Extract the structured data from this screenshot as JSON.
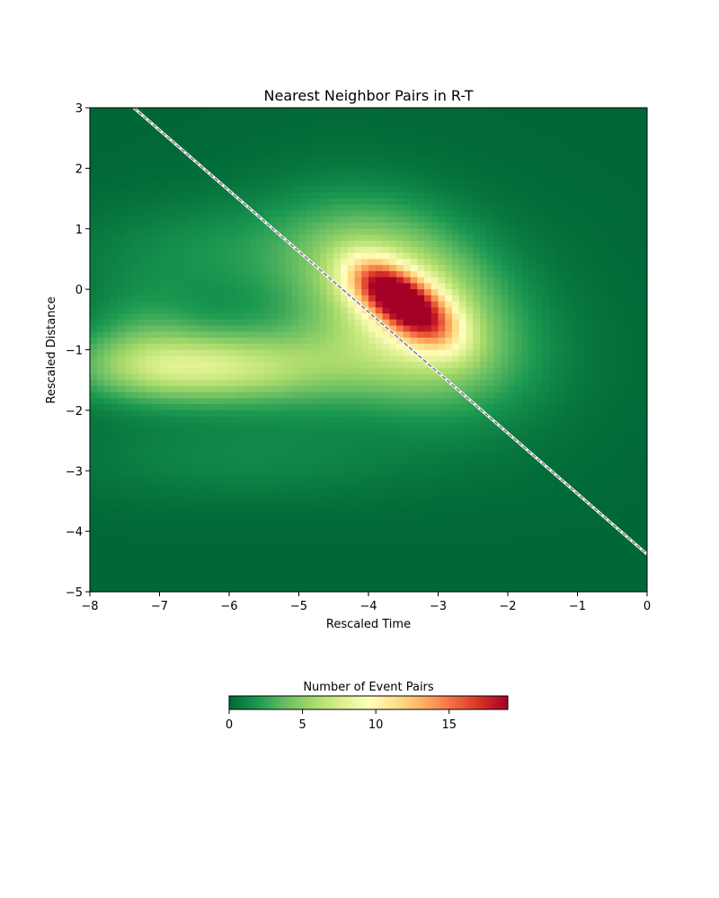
{
  "chart_data": {
    "type": "heatmap",
    "title": "Nearest Neighbor Pairs in R-T",
    "xlabel": "Rescaled Time",
    "ylabel": "Rescaled Distance",
    "xlim": [
      -8,
      0
    ],
    "ylim": [
      -5,
      3
    ],
    "xticks": [
      -8,
      -7,
      -6,
      -5,
      -4,
      -3,
      -2,
      -1,
      0
    ],
    "yticks": [
      -5,
      -4,
      -3,
      -2,
      -1,
      0,
      1,
      2,
      3
    ],
    "xtick_labels": [
      "−8",
      "−7",
      "−6",
      "−5",
      "−4",
      "−3",
      "−2",
      "−1",
      "0"
    ],
    "ytick_labels": [
      "−5",
      "−4",
      "−3",
      "−2",
      "−1",
      "0",
      "1",
      "2",
      "3"
    ],
    "colormap": "RdYlGn_r",
    "color_range": [
      0,
      19
    ],
    "colorbar": {
      "label": "Number of Event Pairs",
      "ticks": [
        0,
        5,
        10,
        15
      ],
      "tick_labels": [
        "0",
        "5",
        "10",
        "15"
      ],
      "placement": "bottom"
    },
    "grid": false,
    "density_components": [
      {
        "center_x": -3.75,
        "center_y": 0.0,
        "sigma_x": 0.38,
        "sigma_y": 0.35,
        "peak": 10.5,
        "rho": -0.45
      },
      {
        "center_x": -3.25,
        "center_y": -0.45,
        "sigma_x": 0.4,
        "sigma_y": 0.38,
        "peak": 9.5,
        "rho": -0.45
      },
      {
        "center_x": -3.5,
        "center_y": -0.2,
        "sigma_x": 0.95,
        "sigma_y": 0.95,
        "peak": 7.0,
        "rho": -0.35
      },
      {
        "center_x": -3.3,
        "center_y": -0.4,
        "sigma_x": 1.5,
        "sigma_y": 1.25,
        "peak": 1.5,
        "rho": -0.2
      },
      {
        "center_x": -6.5,
        "center_y": -1.3,
        "sigma_x": 1.2,
        "sigma_y": 0.38,
        "peak": 5.5,
        "rho": 0.0
      },
      {
        "center_x": -5.0,
        "center_y": -1.25,
        "sigma_x": 1.6,
        "sigma_y": 0.55,
        "peak": 2.6,
        "rho": 0.0
      },
      {
        "center_x": -6.0,
        "center_y": 0.6,
        "sigma_x": 1.5,
        "sigma_y": 0.6,
        "peak": 1.6,
        "rho": 0.0
      },
      {
        "center_x": -5.8,
        "center_y": -2.8,
        "sigma_x": 1.8,
        "sigma_y": 0.5,
        "peak": 1.2,
        "rho": 0.0
      },
      {
        "center_x": -7.2,
        "center_y": -0.8,
        "sigma_x": 0.6,
        "sigma_y": 0.6,
        "peak": 2.0,
        "rho": 0.0
      }
    ],
    "reference_line": {
      "style": "dashed",
      "color": "#808080",
      "points": [
        [
          -7.37,
          3.0
        ],
        [
          0.0,
          -4.38
        ]
      ]
    }
  }
}
